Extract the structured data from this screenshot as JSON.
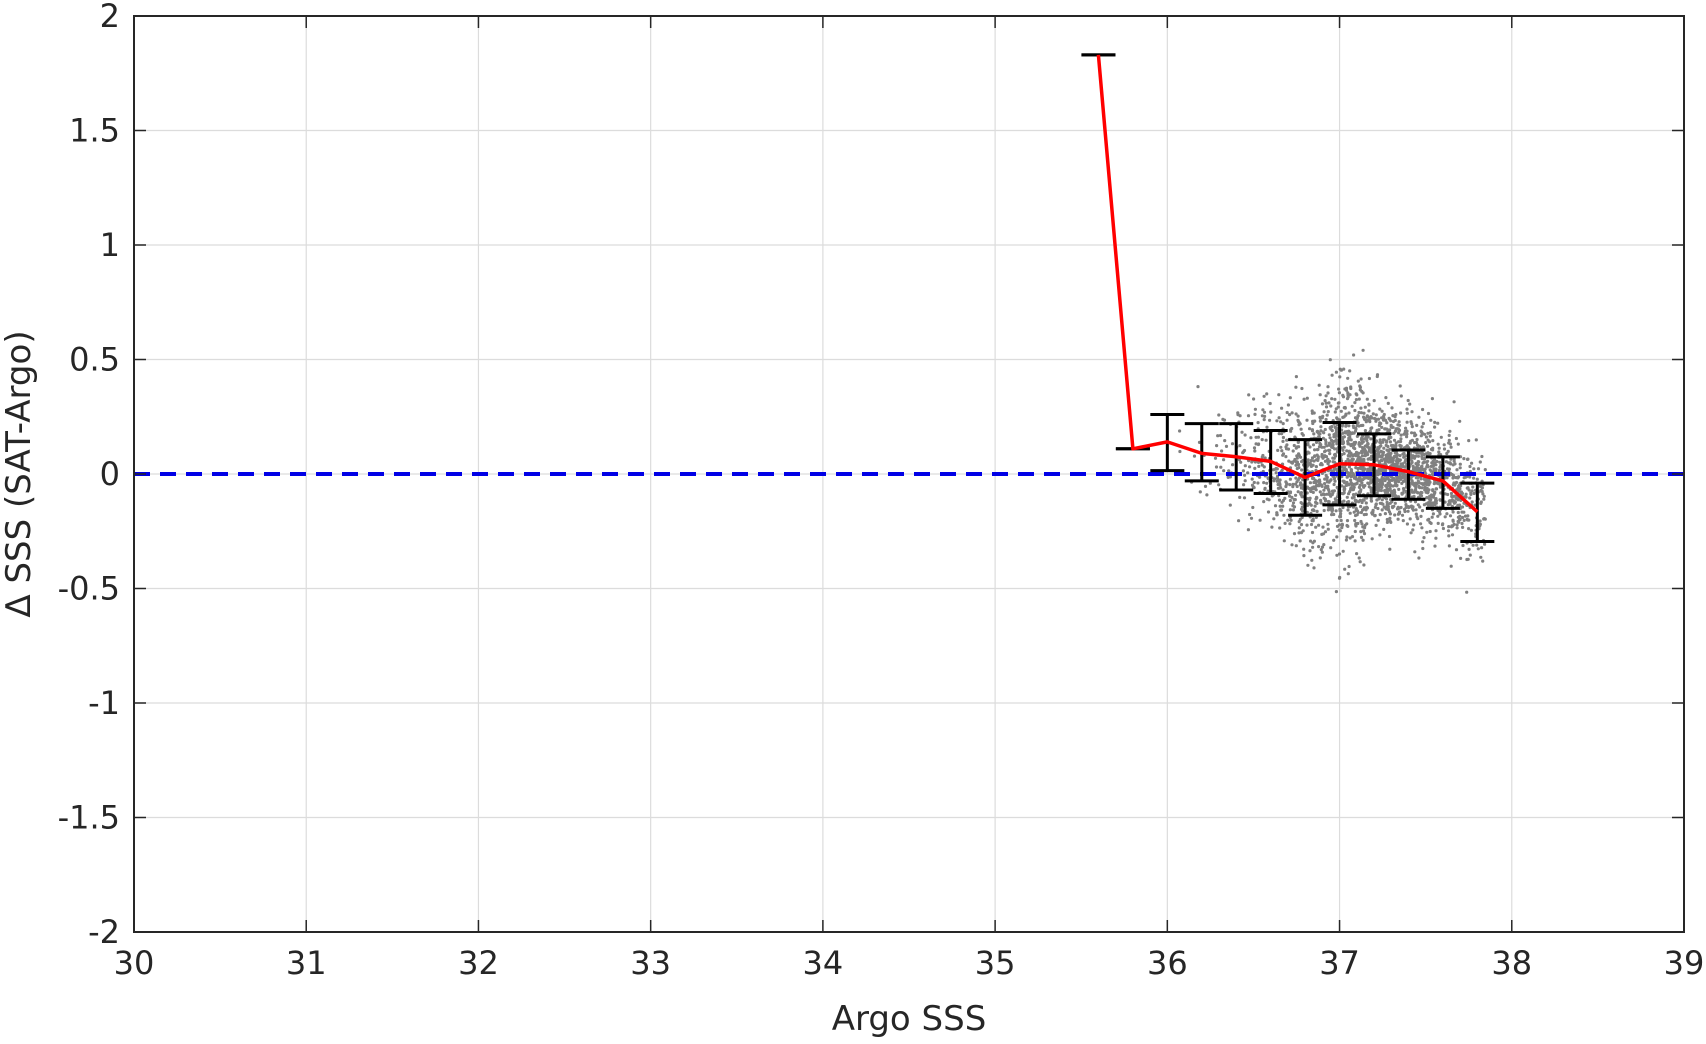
{
  "chart_data": {
    "type": "scatter",
    "title": "",
    "xlabel": "Argo SSS",
    "ylabel": "Δ SSS (SAT-Argo)",
    "xlim": [
      30,
      39
    ],
    "ylim": [
      -2,
      2
    ],
    "xticks": [
      30,
      31,
      32,
      33,
      34,
      35,
      36,
      37,
      38,
      39
    ],
    "yticks": [
      -2,
      -1.5,
      -1,
      -0.5,
      0,
      0.5,
      1,
      1.5,
      2
    ],
    "xtick_labels": [
      "30",
      "31",
      "32",
      "33",
      "34",
      "35",
      "36",
      "37",
      "38",
      "39"
    ],
    "ytick_labels": [
      "-2",
      "-1.5",
      "-1",
      "-0.5",
      "0",
      "0.5",
      "1",
      "1.5",
      "2"
    ],
    "grid": true,
    "legend": "none",
    "reference_line": {
      "y": 0,
      "style": "dashed",
      "color": "#0000e6"
    },
    "scatter_cloud": {
      "color": "#808080",
      "x_range": [
        35.95,
        37.85
      ],
      "y_range": [
        -0.53,
        0.55
      ],
      "center": {
        "x": 37.2,
        "y": 0.02
      },
      "approx_points": 2500
    },
    "binned_mean": {
      "color": "#ff0000",
      "x": [
        35.6,
        35.8,
        36.0,
        36.2,
        36.4,
        36.6,
        36.8,
        37.0,
        37.2,
        37.4,
        37.6,
        37.8
      ],
      "mean": [
        1.83,
        0.11,
        0.14,
        0.09,
        0.075,
        0.055,
        -0.015,
        0.045,
        0.04,
        0.01,
        -0.03,
        -0.165
      ],
      "err_low": [
        1.83,
        0.11,
        0.015,
        -0.03,
        -0.07,
        -0.085,
        -0.18,
        -0.135,
        -0.095,
        -0.11,
        -0.15,
        -0.295
      ],
      "err_high": [
        1.83,
        0.11,
        0.26,
        0.22,
        0.22,
        0.19,
        0.15,
        0.225,
        0.175,
        0.105,
        0.075,
        -0.04
      ]
    }
  }
}
